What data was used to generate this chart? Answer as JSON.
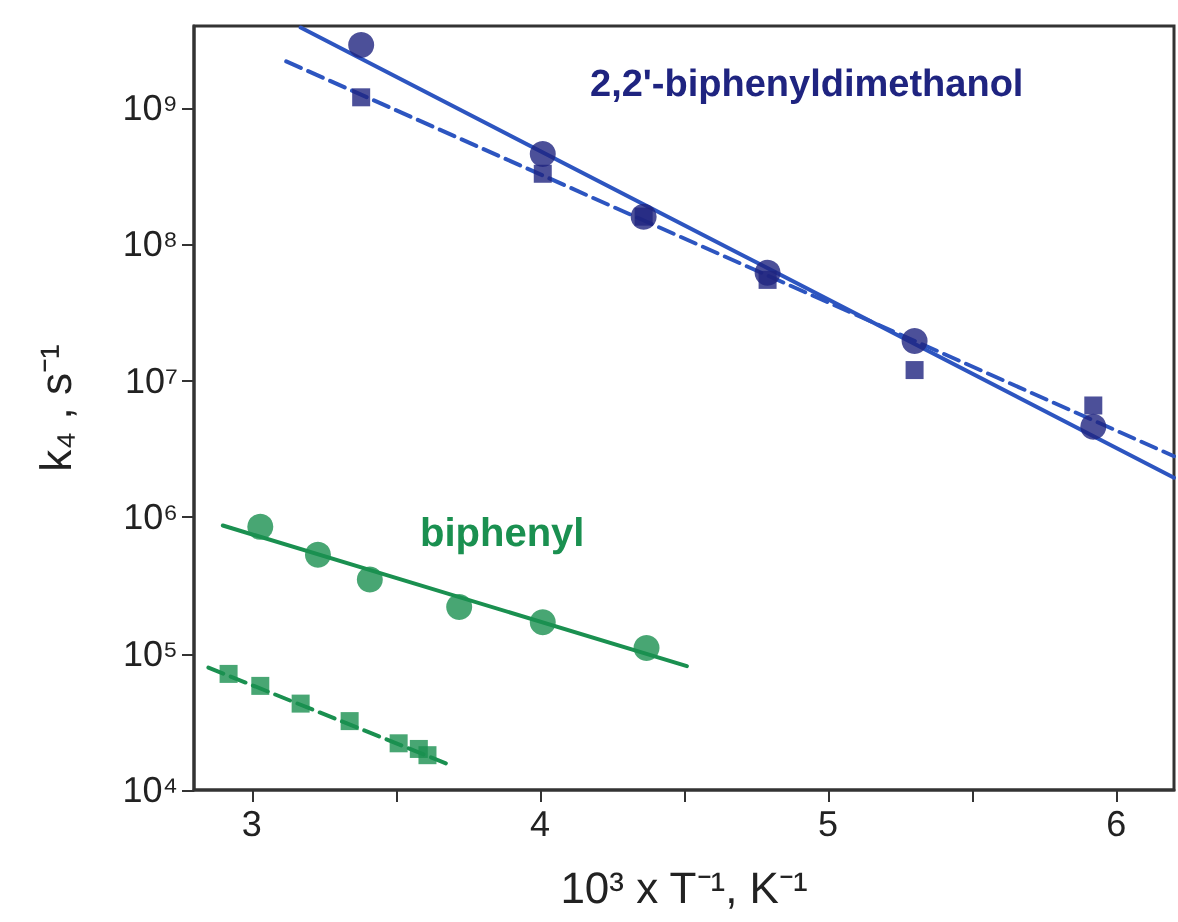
{
  "chart_data": {
    "type": "scatter",
    "xlabel": "10³ x T⁻¹, K⁻¹",
    "ylabel": "k₄ , s⁻¹",
    "log": "y",
    "grid": false,
    "xlim": [
      2.8,
      6.2
    ],
    "xticks": [
      3,
      {
        "value": 3.5,
        "label": null
      },
      4,
      {
        "value": 4.5,
        "label": null
      },
      5,
      {
        "value": 5.5,
        "label": null
      },
      6
    ],
    "ylim": [
      10000,
      4000000000
    ],
    "yticks": [
      {
        "value": 10000,
        "label": "10⁴"
      },
      {
        "value": 100000,
        "label": "10⁵"
      },
      {
        "value": 1000000,
        "label": "10⁶"
      },
      {
        "value": 10000000,
        "label": "10⁷"
      },
      {
        "value": 100000000,
        "label": "10⁸"
      },
      {
        "value": 1000000000,
        "label": "10⁹"
      }
    ],
    "annotations": [
      "2,2'-biphenyldimethanol",
      "biphenyl"
    ],
    "series": [
      {
        "marker": "circle",
        "color": "#1f2480",
        "x": [
          3.38,
          4.01,
          4.36,
          4.79,
          5.3,
          5.92
        ],
        "values": [
          2900000000,
          460000000,
          160000000,
          62000000,
          19600000,
          4600000
        ]
      },
      {
        "marker": "square",
        "color": "#1f2480",
        "x": [
          3.38,
          4.01,
          4.36,
          4.79,
          5.3,
          5.92
        ],
        "values": [
          1200000000,
          330000000,
          160000000,
          55000000,
          12000000,
          6600000
        ]
      },
      {
        "type": "line",
        "marker": "none",
        "line_style": "solid",
        "color": "#2d55c0",
        "x": [
          3.17,
          6.2
        ],
        "values": [
          3900000000,
          1950000
        ]
      },
      {
        "type": "line",
        "marker": "none",
        "line_style": "dashed",
        "color": "#2d55c0",
        "x": [
          3.12,
          6.2
        ],
        "values": [
          2200000000,
          2800000
        ]
      },
      {
        "marker": "circle",
        "color": "#1a9050",
        "x": [
          3.03,
          3.23,
          3.41,
          3.72,
          4.01,
          4.37
        ],
        "values": [
          850000,
          530000,
          350000,
          220000,
          170000,
          110000
        ]
      },
      {
        "marker": "square",
        "color": "#1a9050",
        "x": [
          2.92,
          3.03,
          3.17,
          3.34,
          3.51,
          3.58,
          3.61
        ],
        "values": [
          71000,
          58000,
          43000,
          32000,
          22000,
          20000,
          18000
        ]
      },
      {
        "type": "line",
        "marker": "none",
        "line_style": "solid",
        "color": "#1a9050",
        "x": [
          2.9,
          4.51
        ],
        "values": [
          870000,
          81000
        ]
      },
      {
        "type": "line",
        "marker": "none",
        "line_style": "dashed",
        "color": "#1a9050",
        "x": [
          2.85,
          3.68
        ],
        "values": [
          79000,
          15500
        ]
      }
    ]
  }
}
